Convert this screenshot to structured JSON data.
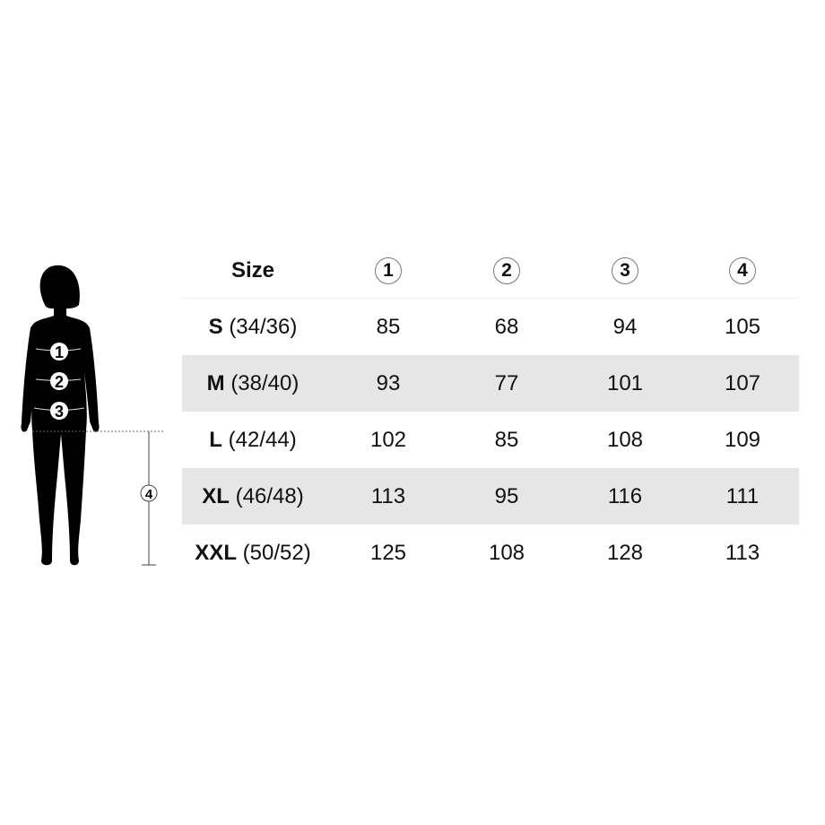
{
  "header": {
    "size_label": "Size",
    "measurements": [
      "1",
      "2",
      "3",
      "4"
    ]
  },
  "rows": [
    {
      "size": "S",
      "eu": "(34/36)",
      "values": [
        "85",
        "68",
        "94",
        "105"
      ]
    },
    {
      "size": "M",
      "eu": "(38/40)",
      "values": [
        "93",
        "77",
        "101",
        "107"
      ]
    },
    {
      "size": "L",
      "eu": "(42/44)",
      "values": [
        "102",
        "85",
        "108",
        "109"
      ]
    },
    {
      "size": "XL",
      "eu": "(46/48)",
      "values": [
        "113",
        "95",
        "116",
        "111"
      ]
    },
    {
      "size": "XXL",
      "eu": "(50/52)",
      "values": [
        "125",
        "108",
        "128",
        "113"
      ]
    }
  ],
  "figure": {
    "markers": [
      "1",
      "2",
      "3",
      "4"
    ]
  },
  "colors": {
    "stripe": "#e6e6e6",
    "silhouette": "#000000"
  }
}
